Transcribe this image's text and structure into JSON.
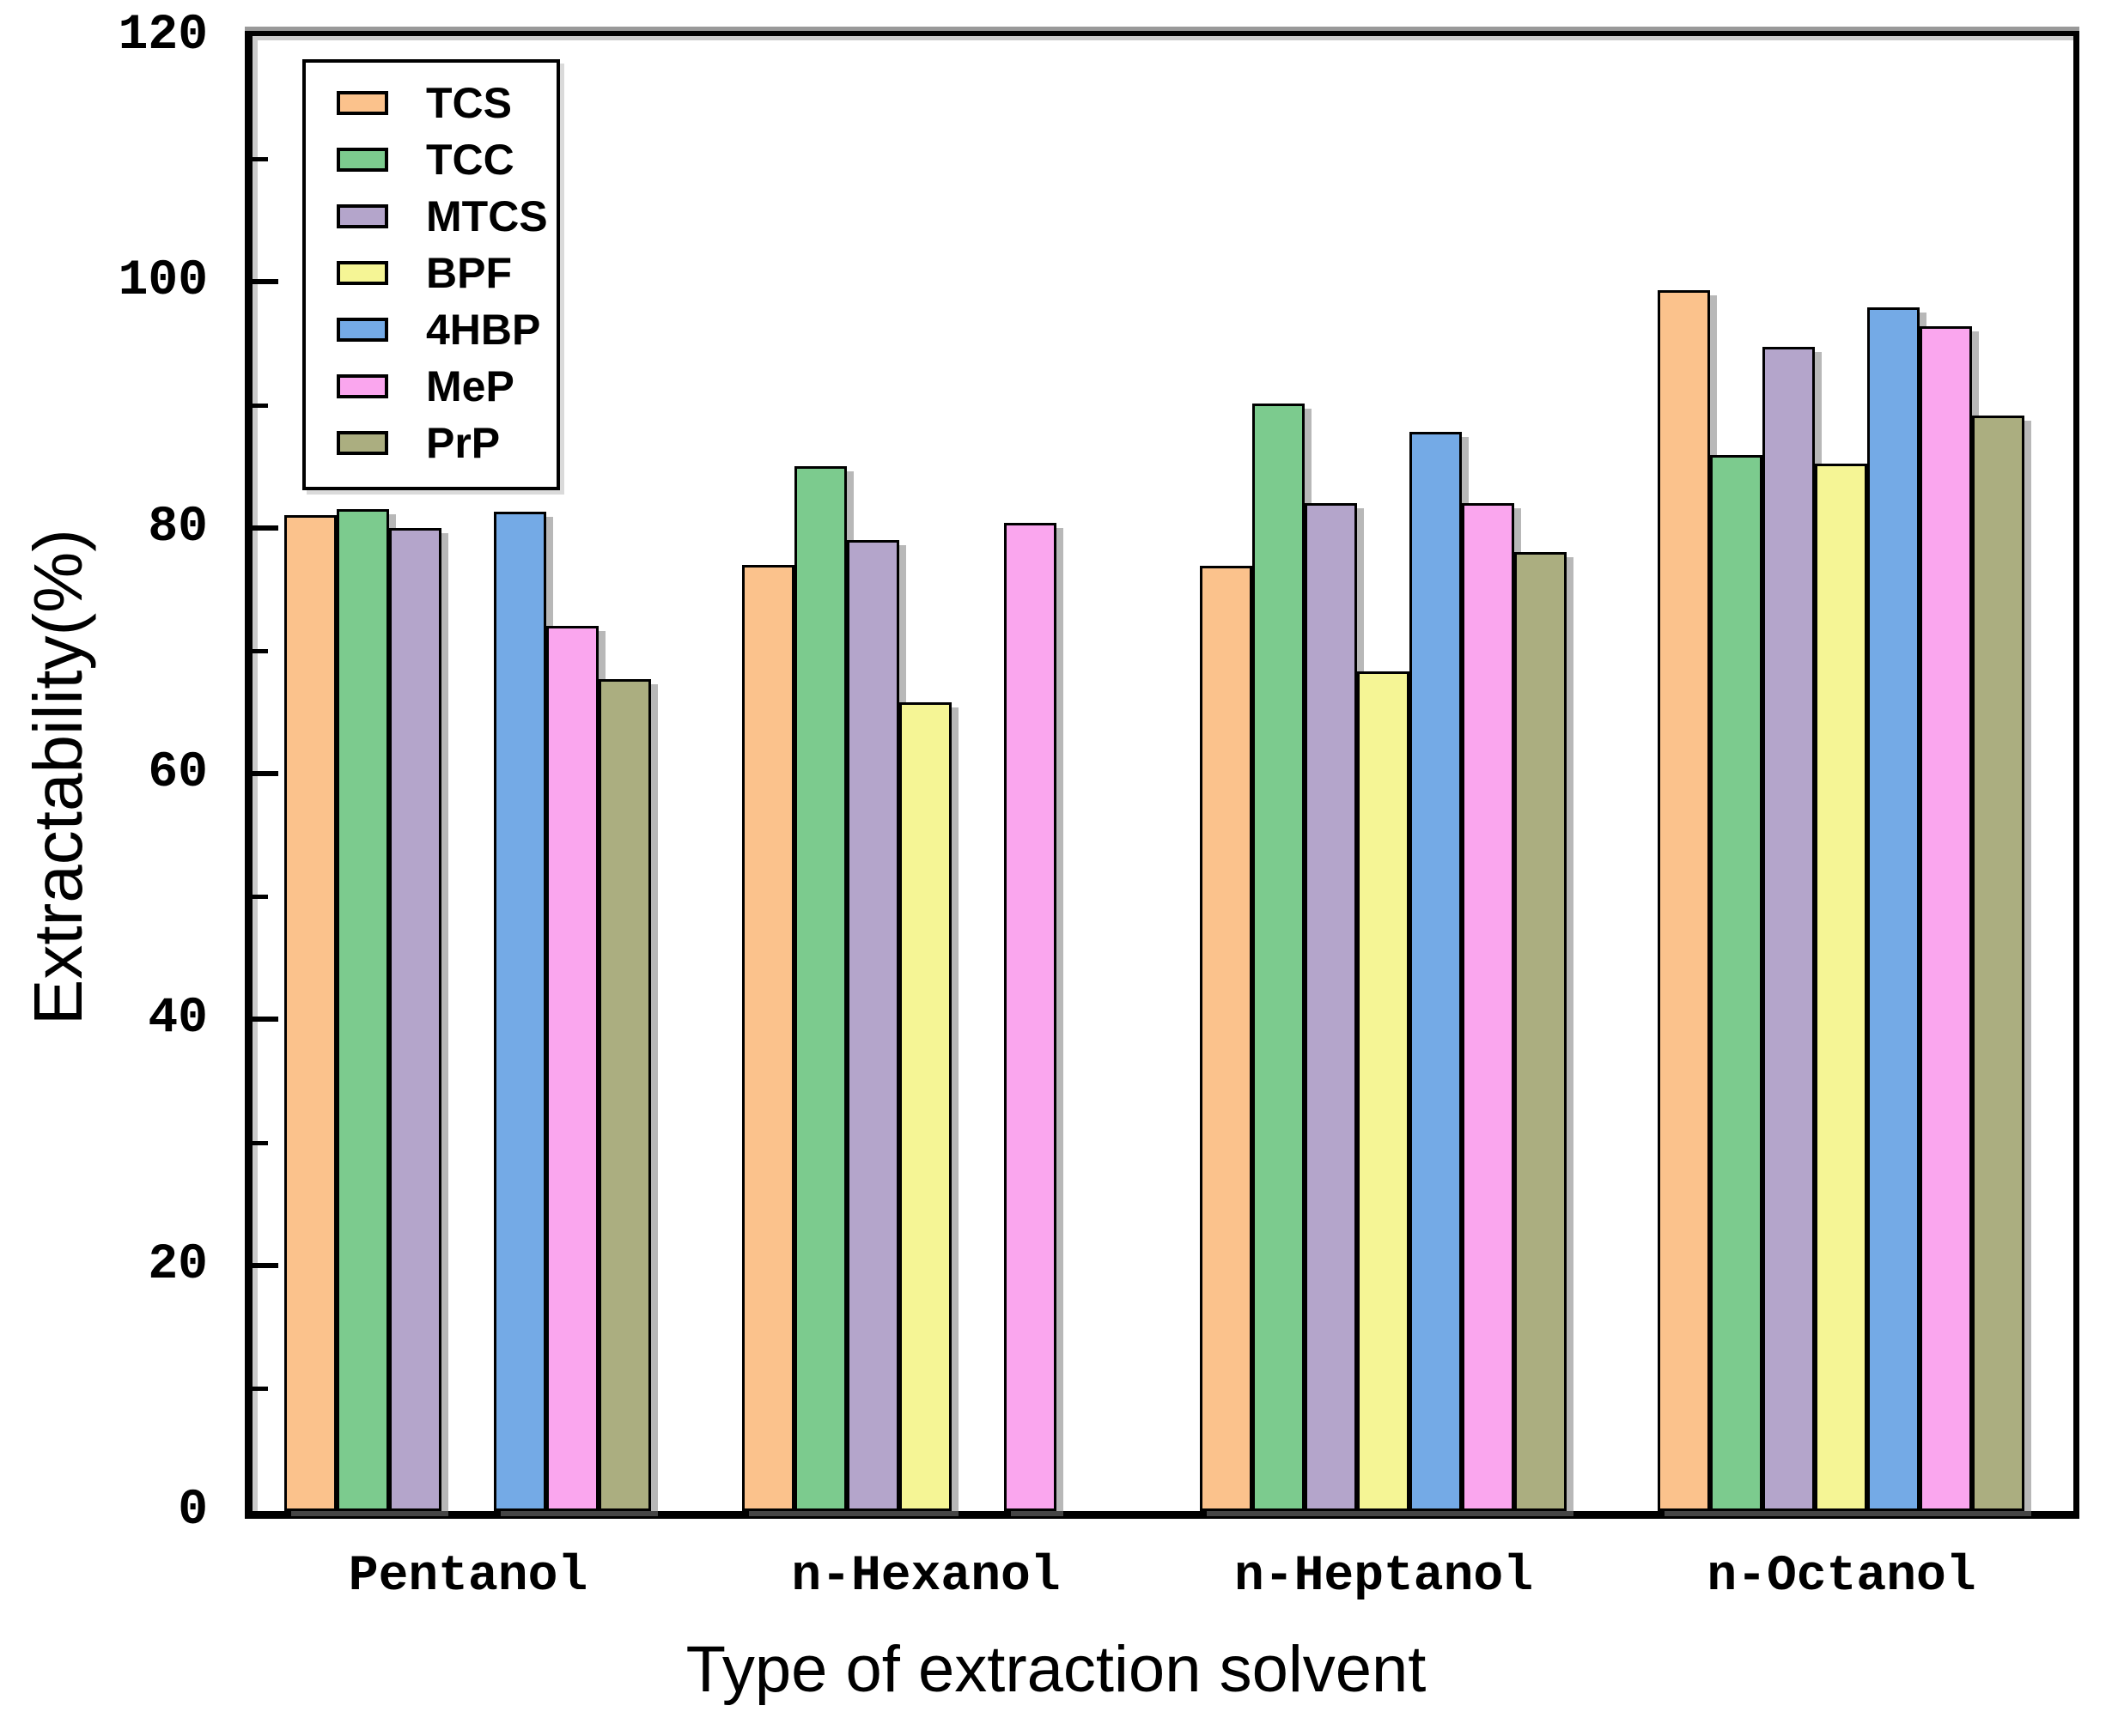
{
  "chart_data": {
    "type": "bar",
    "title": "",
    "xlabel": "Type of extraction solvent",
    "ylabel": "Extractability(%)",
    "ylim": [
      0,
      120
    ],
    "yticks_major": [
      0,
      20,
      40,
      60,
      80,
      100,
      120
    ],
    "yticks_minor": [
      10,
      30,
      50,
      70,
      90,
      110
    ],
    "grid": "off",
    "legend_position": "upper left inside",
    "categories": [
      "Pentanol",
      "n-Hexanol",
      "n-Heptanol",
      "n-Octanol"
    ],
    "series": [
      {
        "name": "TCS",
        "color": "#FBC28C",
        "values": [
          81.0,
          77.0,
          76.9,
          99.3
        ]
      },
      {
        "name": "TCC",
        "color": "#7CCB8E",
        "values": [
          81.5,
          85.0,
          90.1,
          85.9
        ]
      },
      {
        "name": "MTCS",
        "color": "#B4A5CB",
        "values": [
          80.0,
          79.0,
          82.0,
          94.7
        ]
      },
      {
        "name": "BPF",
        "color": "#F5F595",
        "values": [
          null,
          65.8,
          68.3,
          85.2
        ]
      },
      {
        "name": "4HBP",
        "color": "#74AAE6",
        "values": [
          81.3,
          null,
          87.8,
          97.9
        ]
      },
      {
        "name": "MeP",
        "color": "#FAA6EE",
        "values": [
          72.0,
          80.4,
          82.0,
          96.4
        ]
      },
      {
        "name": "PrP",
        "color": "#ABAE80",
        "values": [
          67.7,
          null,
          78.0,
          89.1
        ]
      }
    ],
    "bar_outline_color": "#000000",
    "shadow_color": "#7d7d7d",
    "frame_color": "#000000"
  }
}
